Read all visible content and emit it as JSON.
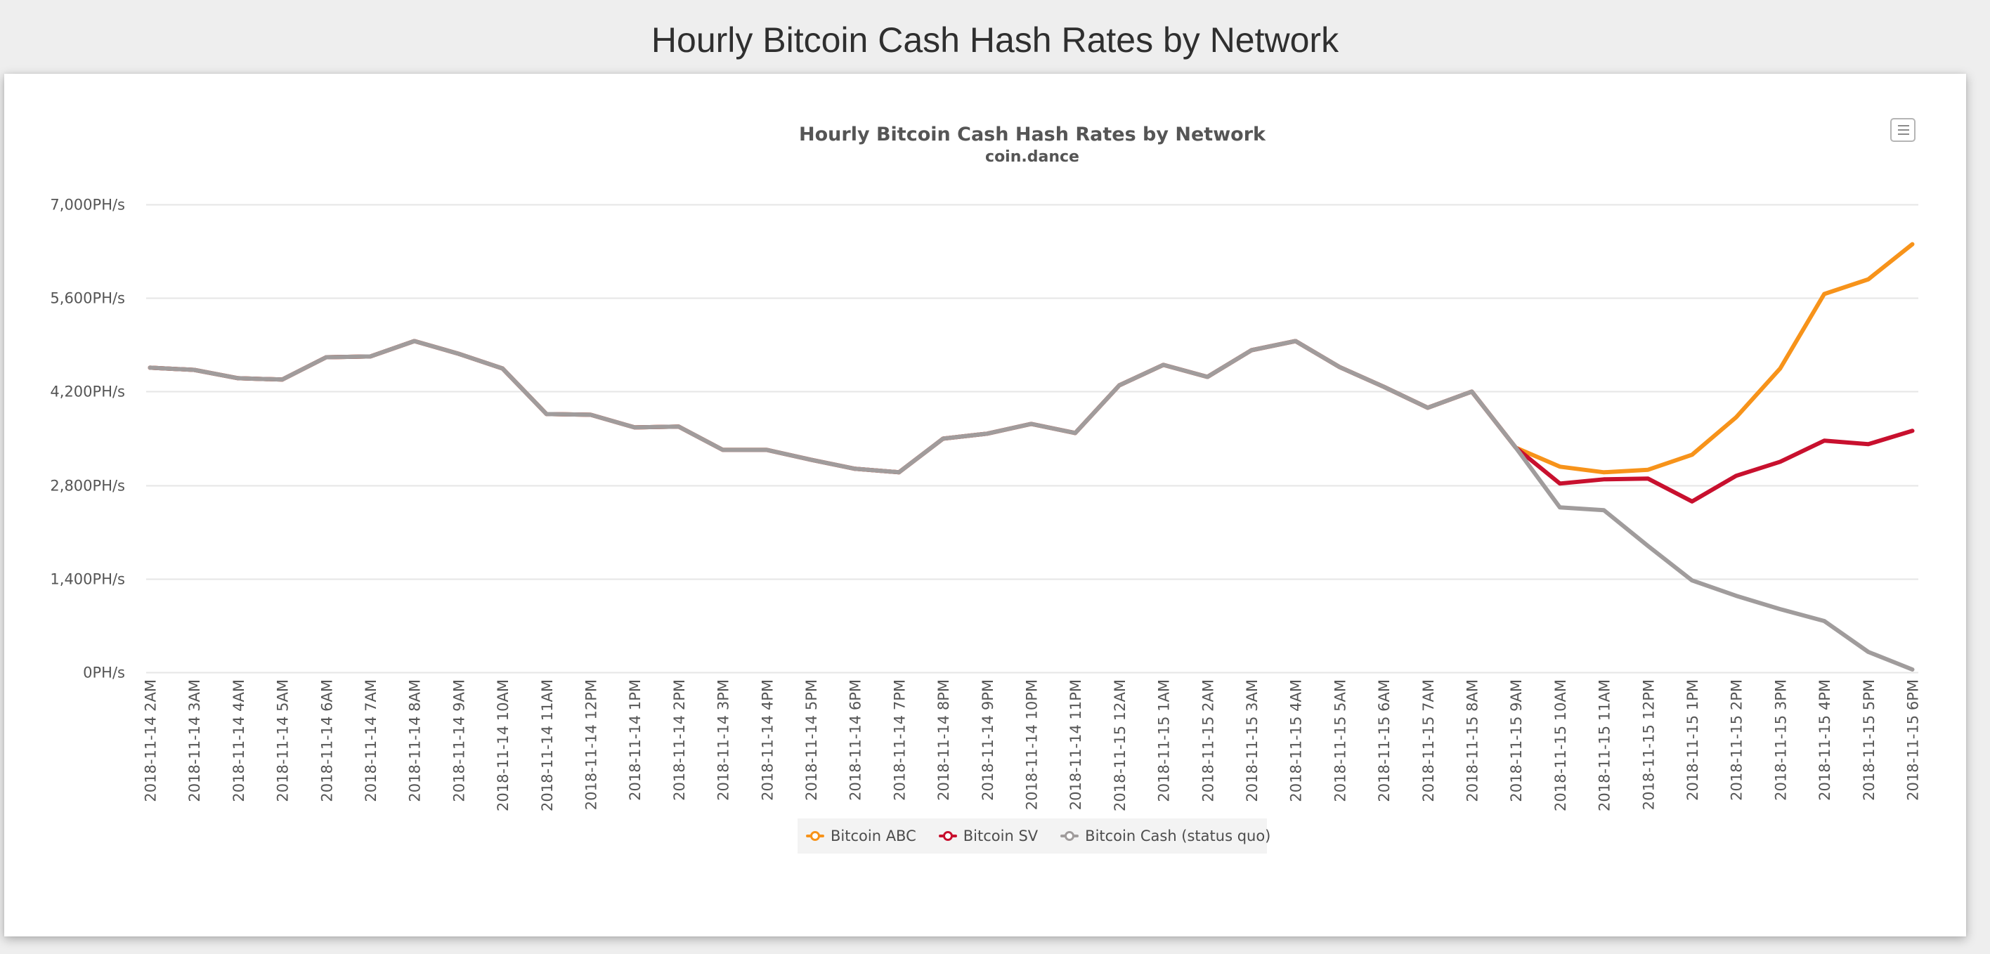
{
  "page": {
    "heading": "Hourly Bitcoin Cash Hash Rates by Network"
  },
  "chart_menu": {
    "icon": "hamburger-menu-icon"
  },
  "colors": {
    "bitcoin_abc": "#f7931a",
    "bitcoin_sv": "#c8102e",
    "bitcoin_cash": "#a09c9c",
    "gridline": "#e6e6e6",
    "axis_text": "#555555",
    "title_text": "#555555",
    "page_background": "#eeeeee",
    "legend_background": "#f3f3f3"
  },
  "legend": {
    "items": [
      {
        "label": "Bitcoin ABC",
        "color": "#f7931a"
      },
      {
        "label": "Bitcoin SV",
        "color": "#c8102e"
      },
      {
        "label": "Bitcoin Cash (status quo)",
        "color": "#a09c9c"
      }
    ]
  },
  "chart_data": {
    "type": "line",
    "title": "Hourly Bitcoin Cash Hash Rates by Network",
    "subtitle": "coin.dance",
    "xlabel": "",
    "ylabel": "",
    "ylim": [
      0,
      7000
    ],
    "yticks": [
      0,
      1400,
      2800,
      4200,
      5600,
      7000
    ],
    "ytick_labels": [
      "0PH/s",
      "1,400PH/s",
      "2,800PH/s",
      "4,200PH/s",
      "5,600PH/s",
      "7,000PH/s"
    ],
    "grid": true,
    "legend_position": "bottom-center",
    "x": [
      "2018-11-14 2AM",
      "2018-11-14 3AM",
      "2018-11-14 4AM",
      "2018-11-14 5AM",
      "2018-11-14 6AM",
      "2018-11-14 7AM",
      "2018-11-14 8AM",
      "2018-11-14 9AM",
      "2018-11-14 10AM",
      "2018-11-14 11AM",
      "2018-11-14 12PM",
      "2018-11-14 1PM",
      "2018-11-14 2PM",
      "2018-11-14 3PM",
      "2018-11-14 4PM",
      "2018-11-14 5PM",
      "2018-11-14 6PM",
      "2018-11-14 7PM",
      "2018-11-14 8PM",
      "2018-11-14 9PM",
      "2018-11-14 10PM",
      "2018-11-14 11PM",
      "2018-11-15 12AM",
      "2018-11-15 1AM",
      "2018-11-15 2AM",
      "2018-11-15 3AM",
      "2018-11-15 4AM",
      "2018-11-15 5AM",
      "2018-11-15 6AM",
      "2018-11-15 7AM",
      "2018-11-15 8AM",
      "2018-11-15 9AM",
      "2018-11-15 10AM",
      "2018-11-15 11AM",
      "2018-11-15 12PM",
      "2018-11-15 1PM",
      "2018-11-15 2PM",
      "2018-11-15 3PM",
      "2018-11-15 4PM",
      "2018-11-15 5PM",
      "2018-11-15 6PM"
    ],
    "series": [
      {
        "name": "Bitcoin ABC",
        "color": "#f7931a",
        "values": [
          4557,
          4525,
          4400,
          4380,
          4714,
          4725,
          4956,
          4767,
          4546,
          3864,
          3853,
          3664,
          3675,
          3328,
          3328,
          3181,
          3045,
          2992,
          3496,
          3570,
          3717,
          3580,
          4294,
          4599,
          4420,
          4819,
          4956,
          4567,
          4273,
          3958,
          4200,
          3360,
          3076,
          2992,
          3030,
          3255,
          3815,
          4546,
          5660,
          5880,
          6405
        ]
      },
      {
        "name": "Bitcoin SV",
        "color": "#c8102e",
        "values": [
          4557,
          4525,
          4400,
          4380,
          4714,
          4725,
          4956,
          4767,
          4546,
          3864,
          3853,
          3664,
          3675,
          3328,
          3328,
          3181,
          3045,
          2992,
          3496,
          3570,
          3717,
          3580,
          4294,
          4599,
          4420,
          4819,
          4956,
          4567,
          4273,
          3958,
          4200,
          3360,
          2824,
          2887,
          2898,
          2556,
          2940,
          3150,
          3465,
          3413,
          3612
        ]
      },
      {
        "name": "Bitcoin Cash (status quo)",
        "color": "#a09c9c",
        "values": [
          4557,
          4525,
          4400,
          4380,
          4714,
          4725,
          4956,
          4767,
          4546,
          3864,
          3853,
          3664,
          3675,
          3328,
          3328,
          3181,
          3045,
          2992,
          3496,
          3570,
          3717,
          3580,
          4294,
          4599,
          4420,
          4819,
          4956,
          4567,
          4273,
          3958,
          4200,
          3360,
          2467,
          2425,
          1890,
          1375,
          1145,
          945,
          767,
          305,
          42
        ]
      }
    ]
  }
}
